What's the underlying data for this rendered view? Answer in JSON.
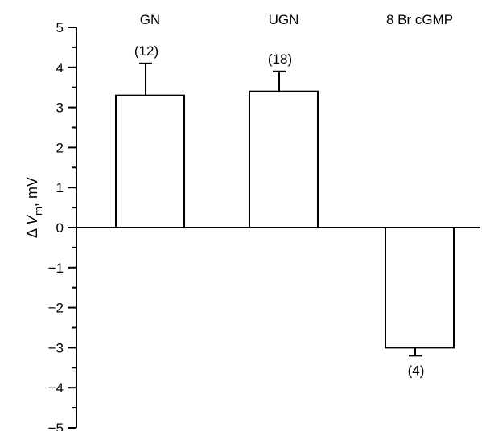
{
  "chart_data": {
    "type": "bar",
    "categories": [
      "GN",
      "UGN",
      "8 Br cGMP"
    ],
    "values": [
      3.3,
      3.4,
      -3.0
    ],
    "error": [
      0.8,
      0.5,
      0.2
    ],
    "n_labels": [
      "(12)",
      "(18)",
      "(4)"
    ],
    "title": "",
    "xlabel": "",
    "ylabel_prefix": "Δ ",
    "ylabel_var": "V",
    "ylabel_sub": "m",
    "ylabel_unit": ", mV",
    "ylim": [
      -5,
      5
    ],
    "yticks": [
      5,
      4,
      3,
      2,
      1,
      0,
      -1,
      -2,
      -3,
      -4,
      -5
    ],
    "ytick_labels": [
      "5",
      "4",
      "3",
      "2",
      "1",
      "0",
      "−1",
      "−2",
      "−3",
      "−4",
      "−5"
    ],
    "grid": false,
    "bar_fill": "#ffffff",
    "bar_stroke": "#000000"
  }
}
